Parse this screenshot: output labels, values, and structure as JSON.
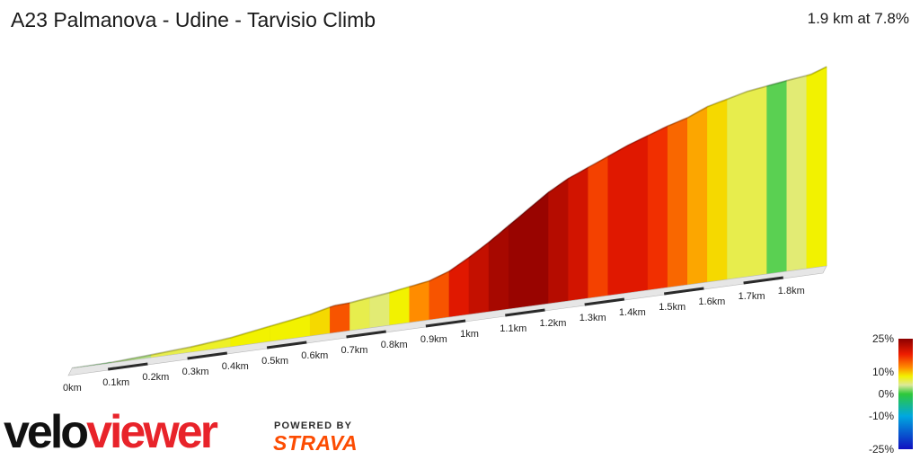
{
  "header": {
    "title": "A23 Palmanova - Udine - Tarvisio Climb",
    "summary": "1.9 km at 7.8%"
  },
  "branding": {
    "logo_text": "veloviewer",
    "powered_by": "POWERED BY",
    "partner": "STRAVA"
  },
  "chart_data": {
    "type": "area",
    "title": "A23 Palmanova - Udine - Tarvisio Climb",
    "xlabel": "",
    "ylabel": "",
    "x_unit": "km",
    "x_ticks": [
      "0km",
      "0.1km",
      "0.2km",
      "0.3km",
      "0.4km",
      "0.5km",
      "0.6km",
      "0.7km",
      "0.8km",
      "0.9km",
      "1km",
      "1.1km",
      "1.2km",
      "1.3km",
      "1.4km",
      "1.5km",
      "1.6km",
      "1.7km",
      "1.8km"
    ],
    "profile": [
      {
        "x": 0.0,
        "y": 0.0
      },
      {
        "x": 0.1,
        "y": 0.4
      },
      {
        "x": 0.2,
        "y": 2.0
      },
      {
        "x": 0.3,
        "y": 3.8
      },
      {
        "x": 0.4,
        "y": 6.5
      },
      {
        "x": 0.5,
        "y": 11.0
      },
      {
        "x": 0.6,
        "y": 15.5
      },
      {
        "x": 0.66,
        "y": 19.5
      },
      {
        "x": 0.7,
        "y": 20.0
      },
      {
        "x": 0.8,
        "y": 23.5
      },
      {
        "x": 0.9,
        "y": 28.0
      },
      {
        "x": 0.95,
        "y": 33.0
      },
      {
        "x": 1.0,
        "y": 41.0
      },
      {
        "x": 1.05,
        "y": 50.0
      },
      {
        "x": 1.1,
        "y": 60.0
      },
      {
        "x": 1.15,
        "y": 70.0
      },
      {
        "x": 1.2,
        "y": 80.0
      },
      {
        "x": 1.25,
        "y": 88.0
      },
      {
        "x": 1.3,
        "y": 94.0
      },
      {
        "x": 1.4,
        "y": 106.0
      },
      {
        "x": 1.5,
        "y": 116.0
      },
      {
        "x": 1.55,
        "y": 120.0
      },
      {
        "x": 1.6,
        "y": 126.0
      },
      {
        "x": 1.7,
        "y": 133.0
      },
      {
        "x": 1.8,
        "y": 137.0
      },
      {
        "x": 1.86,
        "y": 139.0
      },
      {
        "x": 1.9,
        "y": 143.0
      }
    ],
    "segments": [
      {
        "from": 0.0,
        "to": 0.1,
        "grade": 1
      },
      {
        "from": 0.1,
        "to": 0.2,
        "grade": 3
      },
      {
        "from": 0.2,
        "to": 0.3,
        "grade": 6
      },
      {
        "from": 0.3,
        "to": 0.4,
        "grade": 7
      },
      {
        "from": 0.4,
        "to": 0.5,
        "grade": 8
      },
      {
        "from": 0.5,
        "to": 0.6,
        "grade": 8
      },
      {
        "from": 0.6,
        "to": 0.65,
        "grade": 9
      },
      {
        "from": 0.65,
        "to": 0.7,
        "grade": 15
      },
      {
        "from": 0.7,
        "to": 0.75,
        "grade": 6
      },
      {
        "from": 0.75,
        "to": 0.8,
        "grade": 5
      },
      {
        "from": 0.8,
        "to": 0.85,
        "grade": 8
      },
      {
        "from": 0.85,
        "to": 0.9,
        "grade": 12
      },
      {
        "from": 0.9,
        "to": 0.95,
        "grade": 15
      },
      {
        "from": 0.95,
        "to": 1.0,
        "grade": 19
      },
      {
        "from": 1.0,
        "to": 1.05,
        "grade": 21
      },
      {
        "from": 1.05,
        "to": 1.1,
        "grade": 23
      },
      {
        "from": 1.1,
        "to": 1.2,
        "grade": 24
      },
      {
        "from": 1.2,
        "to": 1.25,
        "grade": 22
      },
      {
        "from": 1.25,
        "to": 1.3,
        "grade": 20
      },
      {
        "from": 1.3,
        "to": 1.35,
        "grade": 16
      },
      {
        "from": 1.35,
        "to": 1.45,
        "grade": 19
      },
      {
        "from": 1.45,
        "to": 1.5,
        "grade": 17
      },
      {
        "from": 1.5,
        "to": 1.55,
        "grade": 14
      },
      {
        "from": 1.55,
        "to": 1.6,
        "grade": 11
      },
      {
        "from": 1.6,
        "to": 1.65,
        "grade": 9
      },
      {
        "from": 1.65,
        "to": 1.75,
        "grade": 6
      },
      {
        "from": 1.75,
        "to": 1.8,
        "grade": 1
      },
      {
        "from": 1.8,
        "to": 1.85,
        "grade": 5
      },
      {
        "from": 1.85,
        "to": 1.9,
        "grade": 8
      }
    ],
    "legend": {
      "type": "gradient",
      "labels": [
        "25%",
        "10%",
        "0%",
        "-10%",
        "-25%"
      ],
      "stops": [
        {
          "grade": 25,
          "color": "#8b0000"
        },
        {
          "grade": 18,
          "color": "#ee1c00"
        },
        {
          "grade": 12,
          "color": "#ff8c00"
        },
        {
          "grade": 8,
          "color": "#f2f200"
        },
        {
          "grade": 4,
          "color": "#dce89a"
        },
        {
          "grade": 0,
          "color": "#2ec83a"
        },
        {
          "grade": -10,
          "color": "#00a8e0"
        },
        {
          "grade": -25,
          "color": "#1010c0"
        }
      ]
    }
  }
}
